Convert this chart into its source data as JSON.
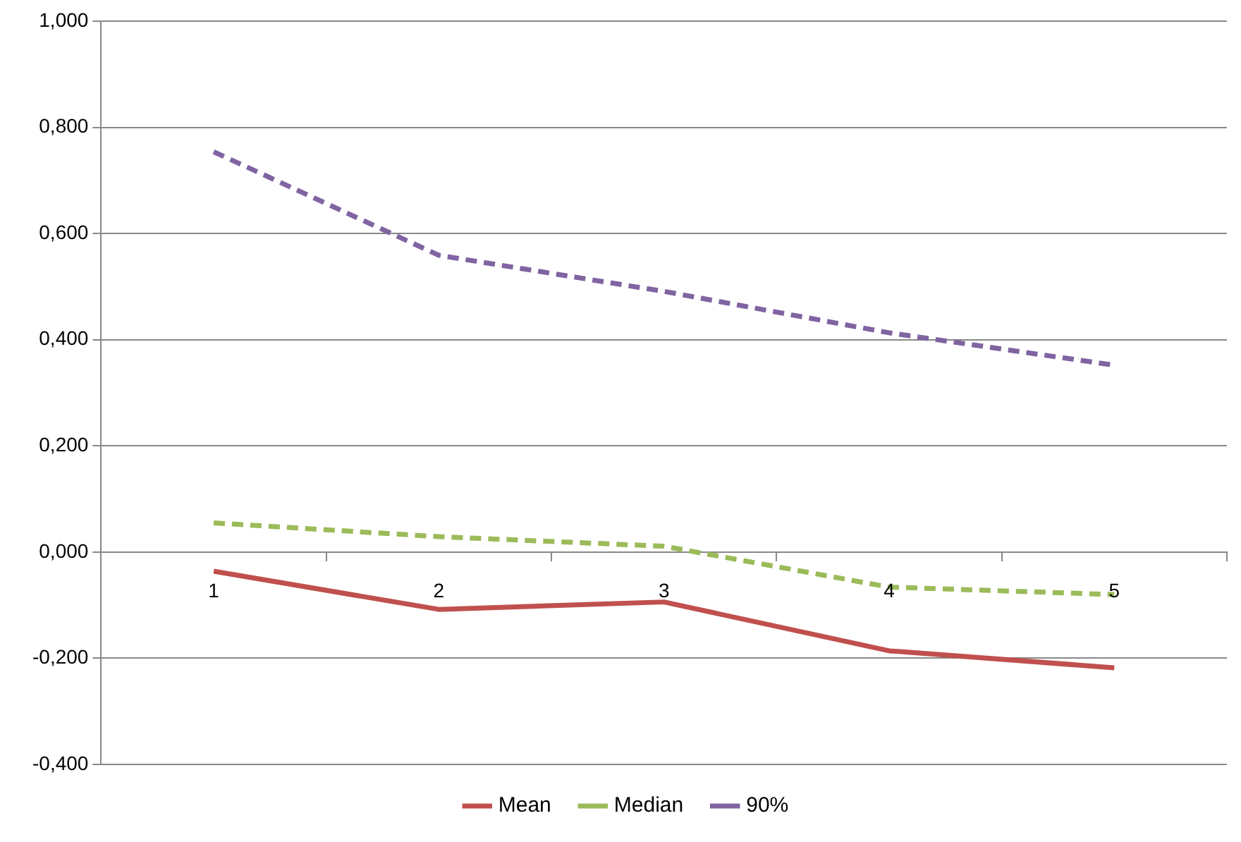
{
  "chart_data": {
    "type": "line",
    "categories": [
      "1",
      "2",
      "3",
      "4",
      "5"
    ],
    "series": [
      {
        "name": "Mean",
        "color": "#c0504d",
        "values": [
          -0.036,
          -0.108,
          -0.094,
          -0.186,
          -0.218
        ],
        "line_style": "solid"
      },
      {
        "name": "Median",
        "color": "#9bbb59",
        "values": [
          0.055,
          0.029,
          0.011,
          -0.066,
          -0.08
        ],
        "line_style": "dashed"
      },
      {
        "name": "90%",
        "color": "#8064a2",
        "values": [
          0.754,
          0.559,
          0.491,
          0.413,
          0.352
        ],
        "line_style": "dashed"
      }
    ],
    "ylim": [
      -0.4,
      1
    ],
    "yticks": [
      {
        "value": -0.4,
        "label": "-0,400"
      },
      {
        "value": -0.2,
        "label": "-0,200"
      },
      {
        "value": 0,
        "label": "0,000"
      },
      {
        "value": 0.2,
        "label": "0,200"
      },
      {
        "value": 0.4,
        "label": "0,400"
      },
      {
        "value": 0.6,
        "label": "0,600"
      },
      {
        "value": 0.8,
        "label": "0,800"
      },
      {
        "value": 1,
        "label": "1,000"
      }
    ],
    "grid": "y",
    "legend": "bottom",
    "marker": "none"
  }
}
